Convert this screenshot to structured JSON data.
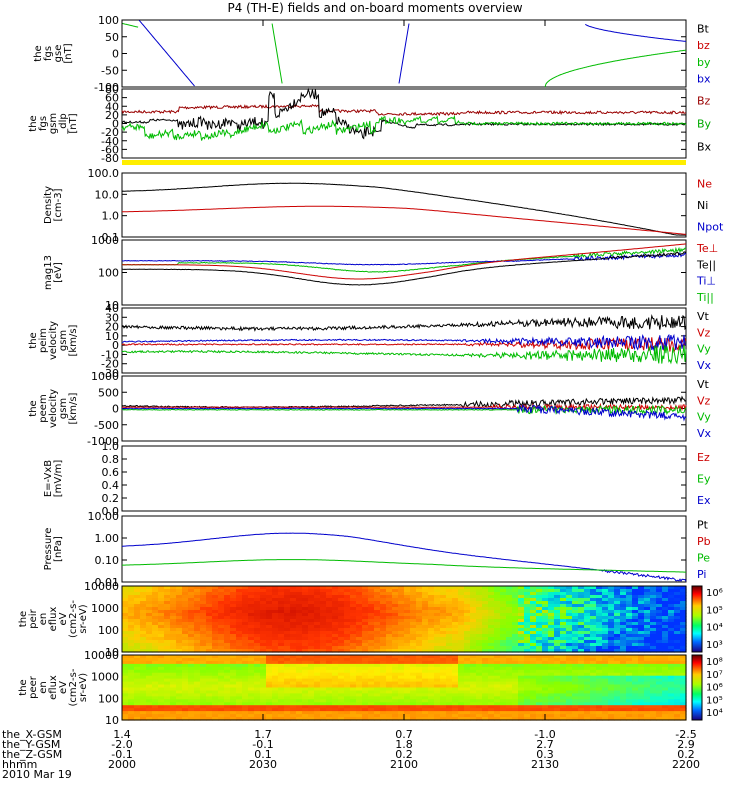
{
  "title": "P4 (TH-E) fields and on-board moments overview",
  "chart_data": [
    {
      "type": "line",
      "ylabel": [
        "the",
        "fgs",
        "gse",
        "[nT]"
      ],
      "yticks": [
        "100",
        "50",
        "0",
        "-50",
        "-100"
      ],
      "ylim": [
        -100,
        100
      ],
      "legend": [
        {
          "label": "Bt",
          "color": "#000000"
        },
        {
          "label": "bz",
          "color": "#cc0000"
        },
        {
          "label": "by",
          "color": "#00bb00"
        },
        {
          "label": "bx",
          "color": "#0000cc"
        }
      ]
    },
    {
      "type": "line",
      "ylabel": [
        "the",
        "fgs",
        "gsm",
        "_dlp",
        "[nT]"
      ],
      "yticks": [
        "80",
        "60",
        "40",
        "20",
        "0",
        "-20",
        "-40",
        "-60",
        "-80"
      ],
      "ylim": [
        -80,
        80
      ],
      "legend": [
        {
          "label": "Bz",
          "color": "#990000"
        },
        {
          "label": "By",
          "color": "#00aa00"
        },
        {
          "label": "Bx",
          "color": "#000000"
        }
      ]
    },
    {
      "type": "line",
      "ylabel": [
        "Density",
        "[cm-3]"
      ],
      "yticks": [
        "100.0",
        "10.0",
        "1.0",
        "0.1"
      ],
      "log": true,
      "legend": [
        {
          "label": "Ne",
          "color": "#cc0000"
        },
        {
          "label": "Ni",
          "color": "#000000"
        },
        {
          "label": "Npot",
          "color": "#0000cc"
        }
      ]
    },
    {
      "type": "line",
      "ylabel": [
        "mag13",
        "[eV]"
      ],
      "yticks": [
        "1000",
        "100",
        "10"
      ],
      "log": true,
      "legend": [
        {
          "label": "Te⊥",
          "color": "#cc0000"
        },
        {
          "label": "Te||",
          "color": "#000000"
        },
        {
          "label": "Ti⊥",
          "color": "#0000cc"
        },
        {
          "label": "Ti||",
          "color": "#00bb00"
        }
      ]
    },
    {
      "type": "line",
      "ylabel": [
        "the",
        "peim",
        "velocity",
        "gsm",
        "[km/s]"
      ],
      "yticks": [
        "40",
        "30",
        "20",
        "10",
        "0",
        "-10",
        "-20",
        "-30"
      ],
      "ylim": [
        -30,
        40
      ],
      "legend": [
        {
          "label": "Vt",
          "color": "#000000"
        },
        {
          "label": "Vz",
          "color": "#cc0000"
        },
        {
          "label": "Vy",
          "color": "#00bb00"
        },
        {
          "label": "Vx",
          "color": "#0000cc"
        }
      ]
    },
    {
      "type": "line",
      "ylabel": [
        "the",
        "peem",
        "velocity",
        "gsm",
        "[km/s]"
      ],
      "yticks": [
        "1000",
        "500",
        "0",
        "-500",
        "-1000"
      ],
      "ylim": [
        -1000,
        1000
      ],
      "legend": [
        {
          "label": "Vt",
          "color": "#000000"
        },
        {
          "label": "Vz",
          "color": "#cc0000"
        },
        {
          "label": "Vy",
          "color": "#00bb00"
        },
        {
          "label": "Vx",
          "color": "#0000cc"
        }
      ]
    },
    {
      "type": "line",
      "ylabel": [
        "E=-VxB",
        "[mV/m]"
      ],
      "yticks": [
        "1.0",
        "0.8",
        "0.6",
        "0.4",
        "0.2",
        "0.0"
      ],
      "ylim": [
        0,
        1
      ],
      "legend": [
        {
          "label": "Ez",
          "color": "#cc0000"
        },
        {
          "label": "Ey",
          "color": "#00bb00"
        },
        {
          "label": "Ex",
          "color": "#0000cc"
        }
      ]
    },
    {
      "type": "line",
      "ylabel": [
        "Pressure",
        "[nPa]"
      ],
      "yticks": [
        "10.00",
        "1.00",
        "0.10",
        "0.01"
      ],
      "log": true,
      "legend": [
        {
          "label": "Pt",
          "color": "#000000"
        },
        {
          "label": "Pb",
          "color": "#cc0000"
        },
        {
          "label": "Pe",
          "color": "#00bb00"
        },
        {
          "label": "Pi",
          "color": "#0000cc"
        }
      ]
    },
    {
      "type": "heatmap",
      "ylabel": [
        "the",
        "peir",
        "en",
        "eflux",
        "eV",
        "(cm2-s-",
        "sr-eV)"
      ],
      "yticks": [
        "10000",
        "1000",
        "100",
        "10"
      ],
      "log": true,
      "colorbar": [
        "10⁶",
        "10⁵",
        "10⁴",
        "10³"
      ]
    },
    {
      "type": "heatmap",
      "ylabel": [
        "the",
        "peer",
        "en",
        "eflux",
        "eV",
        "(cm2-s-",
        "sr-eV)"
      ],
      "yticks": [
        "10000",
        "1000",
        "100",
        "10"
      ],
      "log": true,
      "colorbar": [
        "10⁸",
        "10⁷",
        "10⁶",
        "10⁵",
        "10⁴"
      ]
    }
  ],
  "x_axis": {
    "rows": [
      {
        "label": "the_X-GSM",
        "values": [
          "1.4",
          "1.7",
          "0.7",
          "-1.0",
          "-2.5"
        ]
      },
      {
        "label": "the_Y-GSM",
        "values": [
          "-2.0",
          "-0.1",
          "1.8",
          "2.7",
          "2.9"
        ]
      },
      {
        "label": "the_Z-GSM",
        "values": [
          "-0.1",
          "0.1",
          "0.2",
          "0.3",
          "0.2"
        ]
      },
      {
        "label": "hhmm",
        "values": [
          "2000",
          "2030",
          "2100",
          "2130",
          "2200"
        ]
      }
    ],
    "date": "2010 Mar 19"
  }
}
